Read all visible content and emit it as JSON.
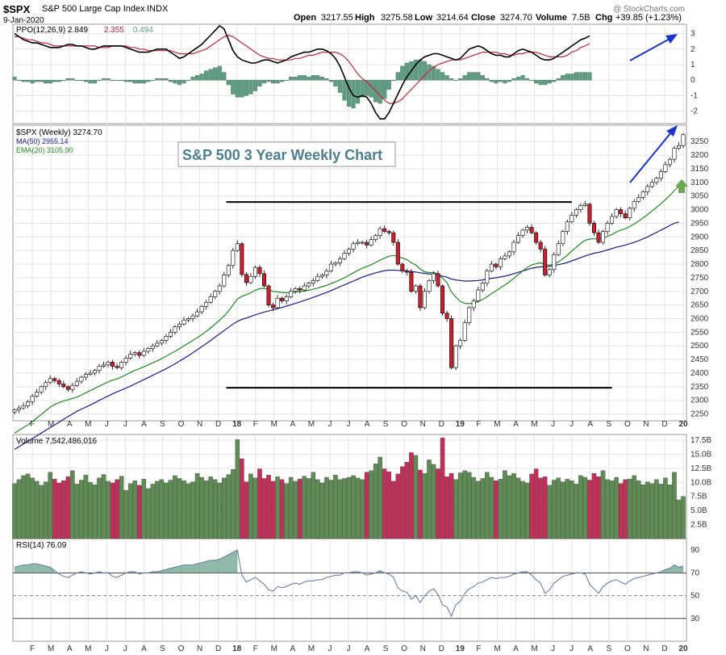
{
  "header": {
    "symbol": "$SPX",
    "name": "S&P 500 Large Cap Index",
    "exchange": "INDX",
    "date": "9-Jan-2020",
    "open_label": "Open",
    "open": "3217.55",
    "high_label": "High",
    "high": "3275.58",
    "low_label": "Low",
    "low": "3214.64",
    "close_label": "Close",
    "close": "3274.70",
    "volume_label": "Volume",
    "volume": "7.5B",
    "chg_label": "Chg",
    "chg": "+39.85 (+1.23%)",
    "watermark": "@ StockCharts.com"
  },
  "colors": {
    "up": "#ffffff",
    "down": "#cc1f2f",
    "candle_outline": "#000000",
    "ma50": "#1a1a8c",
    "ema20": "#1e8a1e",
    "ppo": "#000000",
    "signal": "#c0283c",
    "hist": "#5f9c84",
    "vol_up": "#5f8c55",
    "vol_down": "#c2305a",
    "rsi_fill": "#5f9c84",
    "arrow_blue": "#1a33cc",
    "arrow_green": "#6aa84f",
    "grid": "#e3e3e3"
  },
  "chart_data": [
    {
      "panel": "ppo",
      "type": "line",
      "legend": [
        {
          "text": "PPO(12,26,9)",
          "value": "2.849",
          "color": "#000000"
        },
        {
          "text": "",
          "value": "2.355",
          "color": "#c0283c"
        },
        {
          "text": "",
          "value": "0.494",
          "color": "#5f9c84"
        }
      ],
      "ylim": [
        -2.8,
        3.6
      ],
      "yticks": [
        "3",
        "2",
        "1",
        "0",
        "-1",
        "-2"
      ],
      "ppo": [
        3.0,
        2.8,
        2.6,
        2.5,
        2.4,
        2.4,
        2.3,
        2.2,
        2.1,
        2.1,
        2.1,
        2.2,
        2.3,
        2.3,
        2.2,
        2.2,
        2.1,
        2.0,
        2.0,
        2.1,
        2.2,
        2.2,
        2.2,
        2.2,
        2.2,
        2.1,
        2.0,
        1.9,
        1.8,
        1.8,
        1.8,
        1.9,
        2.0,
        2.0,
        2.0,
        1.8,
        1.6,
        1.4,
        1.5,
        1.7,
        1.9,
        2.1,
        2.3,
        2.6,
        2.9,
        3.2,
        3.5,
        3.3,
        2.6,
        1.9,
        1.5,
        1.3,
        1.2,
        1.1,
        1.1,
        1.2,
        1.3,
        1.3,
        1.2,
        1.1,
        1.2,
        1.3,
        1.5,
        1.6,
        1.7,
        1.8,
        1.8,
        1.9,
        2.0,
        2.0,
        1.9,
        1.7,
        1.4,
        0.9,
        0.2,
        -0.5,
        -1.0,
        -1.1,
        -1.0,
        -1.1,
        -1.5,
        -2.1,
        -2.5,
        -2.5,
        -2.1,
        -1.5,
        -0.9,
        -0.3,
        0.2,
        0.6,
        1.0,
        1.3,
        1.5,
        1.6,
        1.7,
        1.7,
        1.6,
        1.5,
        1.4,
        1.3,
        1.4,
        1.7,
        2.0,
        2.1,
        2.2,
        2.1,
        1.9,
        1.7,
        1.6,
        1.6,
        1.5,
        1.5,
        1.7,
        1.9,
        2.0,
        1.9,
        1.8,
        1.6,
        1.4,
        1.3,
        1.3,
        1.4,
        1.6,
        1.8,
        2.0,
        2.2,
        2.4,
        2.6,
        2.7,
        2.85
      ],
      "signal": [
        2.8,
        2.8,
        2.7,
        2.6,
        2.6,
        2.5,
        2.4,
        2.4,
        2.3,
        2.2,
        2.2,
        2.2,
        2.2,
        2.2,
        2.2,
        2.2,
        2.2,
        2.2,
        2.2,
        2.1,
        2.1,
        2.1,
        2.2,
        2.2,
        2.2,
        2.2,
        2.1,
        2.1,
        2.0,
        2.0,
        1.9,
        1.9,
        1.9,
        1.9,
        1.9,
        1.9,
        1.8,
        1.7,
        1.7,
        1.7,
        1.7,
        1.8,
        1.9,
        2.0,
        2.2,
        2.4,
        2.6,
        2.8,
        2.9,
        2.8,
        2.6,
        2.4,
        2.2,
        2.0,
        1.8,
        1.6,
        1.5,
        1.4,
        1.4,
        1.3,
        1.3,
        1.3,
        1.3,
        1.4,
        1.4,
        1.5,
        1.6,
        1.6,
        1.7,
        1.8,
        1.8,
        1.8,
        1.8,
        1.7,
        1.5,
        1.2,
        0.8,
        0.4,
        0.1,
        -0.1,
        -0.4,
        -0.7,
        -1.0,
        -1.3,
        -1.5,
        -1.5,
        -1.4,
        -1.2,
        -0.9,
        -0.6,
        -0.3,
        0.0,
        0.3,
        0.6,
        0.8,
        1.0,
        1.1,
        1.2,
        1.3,
        1.3,
        1.3,
        1.4,
        1.5,
        1.6,
        1.7,
        1.8,
        1.8,
        1.8,
        1.8,
        1.7,
        1.7,
        1.6,
        1.6,
        1.7,
        1.7,
        1.8,
        1.8,
        1.8,
        1.7,
        1.6,
        1.5,
        1.5,
        1.5,
        1.5,
        1.6,
        1.8,
        1.9,
        2.1,
        2.2,
        2.355
      ]
    },
    {
      "panel": "price",
      "type": "candlestick",
      "legend": [
        {
          "text": "$SPX (Weekly)",
          "value": "3274.70"
        },
        {
          "text": "MA(50)",
          "value": "2955.14",
          "color": "#1a1a8c"
        },
        {
          "text": "EMA(20)",
          "value": "3105.90",
          "color": "#1e8a1e"
        }
      ],
      "annotation": "S&P 500 3 Year Weekly Chart",
      "ylim": [
        2225,
        3310
      ],
      "yticks": [
        "3250",
        "3200",
        "3150",
        "3100",
        "3050",
        "3000",
        "2950",
        "2900",
        "2850",
        "2800",
        "2750",
        "2700",
        "2650",
        "2600",
        "2550",
        "2500",
        "2450",
        "2400",
        "2350",
        "2300",
        "2250"
      ],
      "resistance": 3028,
      "support": 2346,
      "close": [
        2265,
        2272,
        2280,
        2295,
        2315,
        2330,
        2350,
        2365,
        2380,
        2372,
        2360,
        2350,
        2340,
        2355,
        2370,
        2385,
        2395,
        2400,
        2410,
        2425,
        2430,
        2440,
        2425,
        2420,
        2440,
        2455,
        2470,
        2475,
        2465,
        2480,
        2490,
        2500,
        2510,
        2520,
        2535,
        2550,
        2570,
        2580,
        2595,
        2600,
        2610,
        2625,
        2645,
        2660,
        2680,
        2700,
        2720,
        2760,
        2795,
        2850,
        2875,
        2762,
        2732,
        2755,
        2788,
        2765,
        2720,
        2650,
        2640,
        2675,
        2665,
        2680,
        2700,
        2710,
        2705,
        2720,
        2730,
        2740,
        2755,
        2760,
        2775,
        2800,
        2805,
        2820,
        2840,
        2855,
        2875,
        2880,
        2880,
        2870,
        2890,
        2905,
        2930,
        2920,
        2915,
        2880,
        2800,
        2775,
        2770,
        2700,
        2720,
        2640,
        2700,
        2740,
        2765,
        2720,
        2620,
        2600,
        2420,
        2500,
        2520,
        2585,
        2640,
        2665,
        2705,
        2730,
        2775,
        2800,
        2790,
        2820,
        2830,
        2845,
        2880,
        2905,
        2925,
        2935,
        2915,
        2880,
        2855,
        2760,
        2780,
        2835,
        2875,
        2920,
        2955,
        2980,
        3000,
        3015,
        3020,
        2950,
        2915,
        2880,
        2920,
        2950,
        2975,
        3000,
        2985,
        2970,
        3005,
        3030,
        3045,
        3065,
        3085,
        3100,
        3115,
        3140,
        3165,
        3185,
        3225,
        3235,
        3275
      ],
      "ma50": [
        2120,
        2130,
        2140,
        2150,
        2160,
        2170,
        2180,
        2190,
        2200,
        2210,
        2220,
        2230,
        2240,
        2250,
        2260,
        2268,
        2275,
        2283,
        2291,
        2300,
        2308,
        2316,
        2324,
        2331,
        2338,
        2345,
        2352,
        2360,
        2368,
        2376,
        2384,
        2392,
        2400,
        2408,
        2416,
        2425,
        2434,
        2444,
        2454,
        2464,
        2475,
        2486,
        2497,
        2508,
        2520,
        2532,
        2544,
        2556,
        2568,
        2580,
        2590,
        2597,
        2602,
        2608,
        2614,
        2619,
        2624,
        2628,
        2632,
        2637,
        2641,
        2646,
        2651,
        2656,
        2661,
        2667,
        2672,
        2678,
        2684,
        2690,
        2696,
        2703,
        2710,
        2717,
        2724,
        2731,
        2738,
        2745,
        2752,
        2758,
        2763,
        2768,
        2772,
        2776,
        2778,
        2778,
        2777,
        2776,
        2775,
        2773,
        2771,
        2768,
        2766,
        2764,
        2762,
        2760,
        2756,
        2752,
        2745,
        2742,
        2740,
        2738,
        2738,
        2739,
        2740,
        2742,
        2745,
        2748,
        2750,
        2753,
        2756,
        2760,
        2765,
        2770,
        2775,
        2780,
        2785,
        2788,
        2790,
        2790,
        2792,
        2795,
        2798,
        2802,
        2806,
        2812,
        2818,
        2824,
        2830,
        2835,
        2840,
        2843,
        2847,
        2852,
        2857,
        2862,
        2866,
        2870,
        2875,
        2880,
        2886,
        2893,
        2900,
        2908,
        2916,
        2925,
        2933,
        2942,
        2950,
        2955
      ],
      "ema20": [
        2180,
        2190,
        2200,
        2210,
        2222,
        2235,
        2248,
        2262,
        2275,
        2285,
        2292,
        2298,
        2302,
        2307,
        2312,
        2320,
        2328,
        2336,
        2344,
        2352,
        2360,
        2368,
        2374,
        2379,
        2386,
        2394,
        2402,
        2410,
        2416,
        2423,
        2430,
        2438,
        2445,
        2453,
        2462,
        2471,
        2480,
        2490,
        2500,
        2510,
        2520,
        2530,
        2541,
        2553,
        2566,
        2580,
        2594,
        2610,
        2628,
        2650,
        2672,
        2682,
        2688,
        2695,
        2704,
        2710,
        2711,
        2706,
        2700,
        2698,
        2696,
        2695,
        2696,
        2698,
        2699,
        2701,
        2704,
        2708,
        2712,
        2717,
        2722,
        2729,
        2735,
        2742,
        2750,
        2759,
        2768,
        2777,
        2785,
        2791,
        2798,
        2806,
        2815,
        2822,
        2829,
        2832,
        2828,
        2822,
        2817,
        2805,
        2797,
        2782,
        2772,
        2769,
        2769,
        2764,
        2748,
        2732,
        2698,
        2679,
        2663,
        2656,
        2655,
        2657,
        2663,
        2670,
        2680,
        2692,
        2702,
        2713,
        2724,
        2735,
        2748,
        2762,
        2775,
        2788,
        2797,
        2802,
        2805,
        2798,
        2796,
        2800,
        2808,
        2820,
        2833,
        2848,
        2862,
        2876,
        2888,
        2892,
        2893,
        2893,
        2896,
        2902,
        2909,
        2918,
        2925,
        2930,
        2938,
        2947,
        2958,
        2970,
        2982,
        2995,
        3008,
        3022,
        3037,
        3052,
        3070,
        3086,
        3106
      ]
    },
    {
      "panel": "volume",
      "type": "bar",
      "legend": [
        {
          "text": "Volume",
          "value": "7,542,486,016"
        }
      ],
      "ylim": [
        0,
        18.5
      ],
      "yticks": [
        "17.5B",
        "15.0B",
        "12.5B",
        "10.0B",
        "7.5B",
        "5.0B",
        "2.5B"
      ],
      "units": "billions",
      "values": [
        9.8,
        10.5,
        11.2,
        11.5,
        10.8,
        10.2,
        9.5,
        10.1,
        11.8,
        10.6,
        9.9,
        10.3,
        11.0,
        12.1,
        9.7,
        10.4,
        11.3,
        10.0,
        9.6,
        10.8,
        11.4,
        10.2,
        9.9,
        10.5,
        11.1,
        8.6,
        9.8,
        10.3,
        9.5,
        10.6,
        8.9,
        9.7,
        10.2,
        10.5,
        9.9,
        10.4,
        11.2,
        10.7,
        10.3,
        9.8,
        10.1,
        11.6,
        10.9,
        10.3,
        11.0,
        10.5,
        9.9,
        10.8,
        11.4,
        12.3,
        17.6,
        14.2,
        10.1,
        11.5,
        10.8,
        12.4,
        10.7,
        11.3,
        10.2,
        11.0,
        10.5,
        9.8,
        10.9,
        10.2,
        10.6,
        11.1,
        10.7,
        11.8,
        10.5,
        9.9,
        10.9,
        10.4,
        11.3,
        10.5,
        10.7,
        10.9,
        11.2,
        10.8,
        10.5,
        11.8,
        12.1,
        13.3,
        14.5,
        12.4,
        11.9,
        10.2,
        11.5,
        12.8,
        13.6,
        15.3,
        14.8,
        12.2,
        11.6,
        14.0,
        13.2,
        12.4,
        17.9,
        11.0,
        11.6,
        10.5,
        11.7,
        12.1,
        11.8,
        10.9,
        10.2,
        10.7,
        11.8,
        10.9,
        10.3,
        10.6,
        12.1,
        11.2,
        11.6,
        10.8,
        10.2,
        9.9,
        11.5,
        12.4,
        10.8,
        11.0,
        9.5,
        10.4,
        10.8,
        10.1,
        10.6,
        10.3,
        9.7,
        11.2,
        10.9,
        10.4,
        11.6,
        11.0,
        12.1,
        10.5,
        10.3,
        10.9,
        9.8,
        10.5,
        10.6,
        11.2,
        10.3,
        9.6,
        10.1,
        9.8,
        10.5,
        9.7,
        10.8,
        9.6,
        11.8,
        6.9,
        7.5
      ]
    },
    {
      "panel": "rsi",
      "type": "line",
      "legend": [
        {
          "text": "RSI(14)",
          "value": "76.09"
        }
      ],
      "ylim": [
        10,
        100
      ],
      "yticks": [
        "90",
        "70",
        "50",
        "30"
      ],
      "reference_lines": [
        70,
        50,
        30
      ],
      "values": [
        75,
        76,
        77,
        77,
        78,
        78,
        77,
        76,
        75,
        72,
        69,
        67,
        66,
        68,
        70,
        71,
        70,
        69,
        70,
        71,
        70,
        70,
        67,
        66,
        68,
        70,
        71,
        71,
        69,
        70,
        70,
        71,
        71,
        72,
        73,
        74,
        75,
        76,
        77,
        77,
        77,
        78,
        79,
        80,
        81,
        81,
        82,
        84,
        86,
        88,
        90,
        68,
        62,
        64,
        66,
        63,
        60,
        55,
        54,
        58,
        57,
        58,
        60,
        61,
        60,
        62,
        63,
        63,
        64,
        64,
        66,
        67,
        68,
        68,
        70,
        70,
        71,
        71,
        70,
        68,
        69,
        70,
        72,
        70,
        69,
        66,
        57,
        54,
        53,
        47,
        50,
        44,
        50,
        54,
        56,
        51,
        42,
        40,
        32,
        42,
        45,
        52,
        56,
        58,
        61,
        62,
        64,
        66,
        65,
        66,
        66,
        67,
        69,
        70,
        71,
        71,
        68,
        64,
        61,
        52,
        55,
        61,
        64,
        67,
        68,
        69,
        70,
        70,
        69,
        60,
        56,
        52,
        58,
        61,
        63,
        64,
        62,
        60,
        63,
        65,
        66,
        67,
        68,
        69,
        70,
        71,
        73,
        74,
        77,
        75,
        76
      ]
    }
  ],
  "x_axis": {
    "months": [
      "F",
      "M",
      "A",
      "M",
      "J",
      "J",
      "A",
      "S",
      "O",
      "N",
      "D",
      "18",
      "F",
      "M",
      "A",
      "M",
      "J",
      "J",
      "A",
      "S",
      "O",
      "N",
      "D",
      "19",
      "F",
      "M",
      "A",
      "M",
      "J",
      "J",
      "A",
      "S",
      "O",
      "N",
      "D",
      "20"
    ]
  }
}
